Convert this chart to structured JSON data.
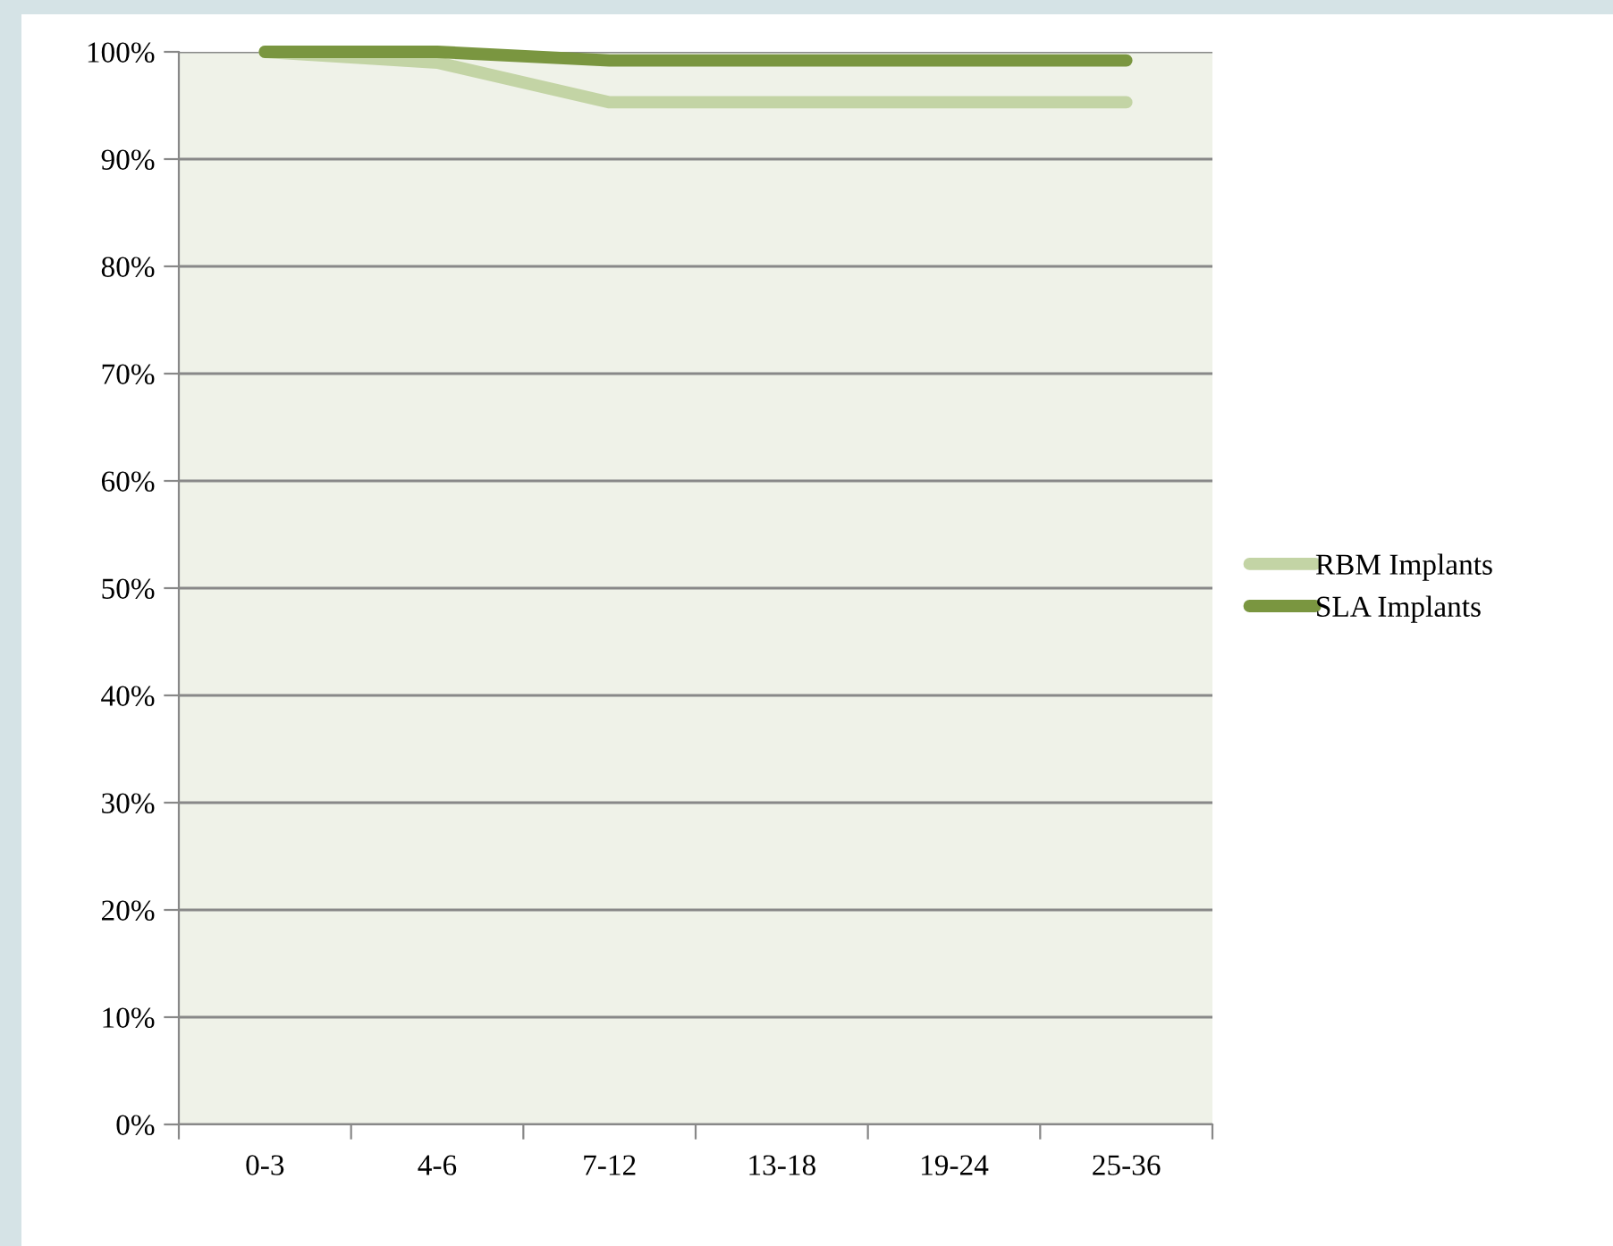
{
  "chart_data": {
    "type": "line",
    "categories": [
      "0-3",
      "4-6",
      "7-12",
      "13-18",
      "19-24",
      "25-36"
    ],
    "series": [
      {
        "name": "RBM Implants",
        "color": "#c3d4a5",
        "values": [
          100,
          99,
          95.3,
          95.3,
          95.3,
          95.3
        ]
      },
      {
        "name": "SLA Implants",
        "color": "#7a9640",
        "values": [
          100,
          100,
          99.2,
          99.2,
          99.2,
          99.2
        ]
      }
    ],
    "ylim": [
      0,
      100
    ],
    "yticks": [
      {
        "value": 0,
        "label": "0%"
      },
      {
        "value": 10,
        "label": "10%"
      },
      {
        "value": 20,
        "label": "20%"
      },
      {
        "value": 30,
        "label": "30%"
      },
      {
        "value": 40,
        "label": "40%"
      },
      {
        "value": 50,
        "label": "50%"
      },
      {
        "value": 60,
        "label": "60%"
      },
      {
        "value": 70,
        "label": "70%"
      },
      {
        "value": 80,
        "label": "80%"
      },
      {
        "value": 90,
        "label": "90%"
      },
      {
        "value": 100,
        "label": "100%"
      }
    ],
    "grid": "y",
    "legend": "right",
    "marker": "none",
    "line_style": "solid"
  }
}
